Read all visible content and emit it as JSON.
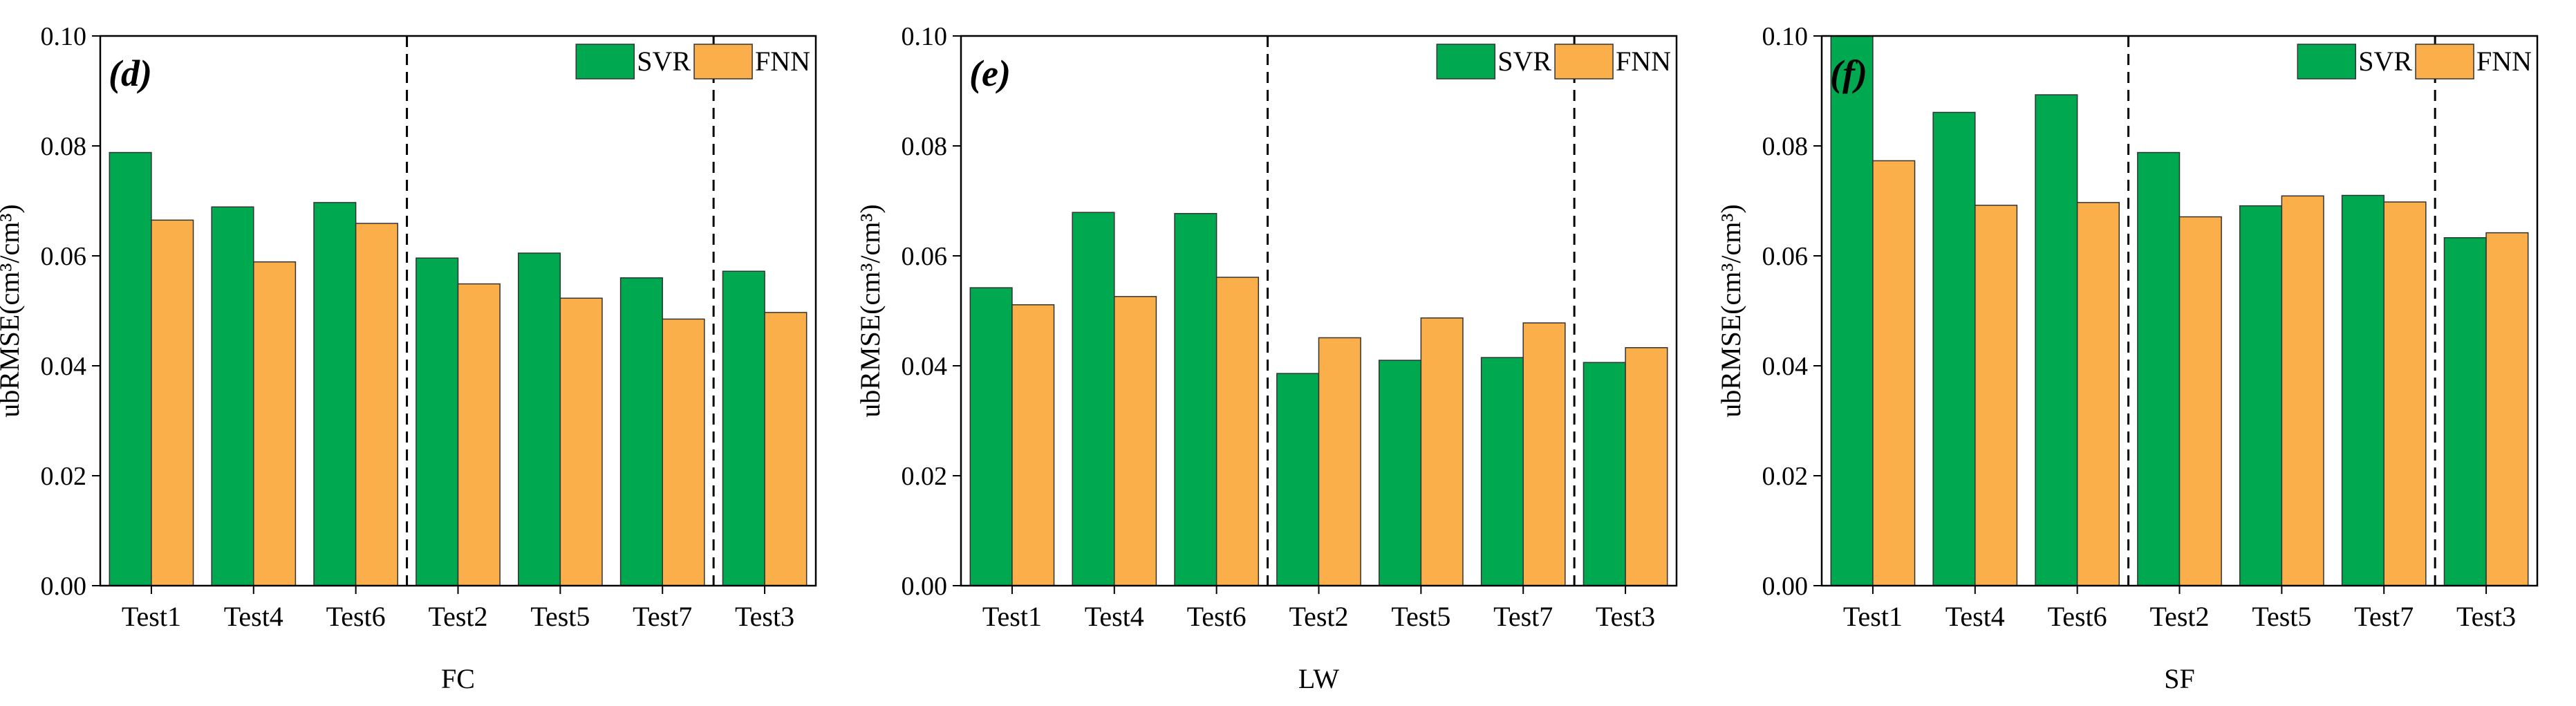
{
  "chart_data": [
    {
      "type": "bar",
      "panel_label": "d",
      "categories": [
        "Test1",
        "Test4",
        "Test6",
        "Test2",
        "Test5",
        "Test7",
        "Test3"
      ],
      "series": [
        {
          "name": "SVR",
          "color": "#00A94F",
          "values": [
            0.0788,
            0.0689,
            0.0697,
            0.0596,
            0.0605,
            0.056,
            0.0572
          ]
        },
        {
          "name": "FNN",
          "color": "#FBAF4B",
          "values": [
            0.0665,
            0.0589,
            0.0659,
            0.0549,
            0.0523,
            0.0485,
            0.0497
          ]
        }
      ],
      "xlabel": "FC",
      "ylabel": "ubRMSE(cm³/cm³)",
      "ylim": [
        0,
        0.1
      ],
      "yticks": [
        "0.00",
        "0.02",
        "0.04",
        "0.06",
        "0.08",
        "0.10"
      ],
      "group_dividers_after": [
        2,
        5
      ],
      "legend": "top-right"
    },
    {
      "type": "bar",
      "panel_label": "e",
      "categories": [
        "Test1",
        "Test4",
        "Test6",
        "Test2",
        "Test5",
        "Test7",
        "Test3"
      ],
      "series": [
        {
          "name": "SVR",
          "color": "#00A94F",
          "values": [
            0.0542,
            0.0679,
            0.0677,
            0.0386,
            0.041,
            0.0415,
            0.0406
          ]
        },
        {
          "name": "FNN",
          "color": "#FBAF4B",
          "values": [
            0.0511,
            0.0526,
            0.0561,
            0.0451,
            0.0487,
            0.0478,
            0.0433
          ]
        }
      ],
      "xlabel": "LW",
      "ylabel": "ubRMSE(cm³/cm³)",
      "ylim": [
        0,
        0.1
      ],
      "yticks": [
        "0.00",
        "0.02",
        "0.04",
        "0.06",
        "0.08",
        "0.10"
      ],
      "group_dividers_after": [
        2,
        5
      ],
      "legend": "top-right"
    },
    {
      "type": "bar",
      "panel_label": "f",
      "categories": [
        "Test1",
        "Test4",
        "Test6",
        "Test2",
        "Test5",
        "Test7",
        "Test3"
      ],
      "series": [
        {
          "name": "SVR",
          "color": "#00A94F",
          "values": [
            0.1,
            0.0861,
            0.0893,
            0.0788,
            0.0691,
            0.071,
            0.0633
          ]
        },
        {
          "name": "FNN",
          "color": "#FBAF4B",
          "values": [
            0.0773,
            0.0692,
            0.0697,
            0.0671,
            0.0709,
            0.0698,
            0.0642
          ]
        }
      ],
      "xlabel": "SF",
      "ylabel": "ubRMSE(cm³/cm³)",
      "ylim": [
        0,
        0.1
      ],
      "yticks": [
        "0.00",
        "0.02",
        "0.04",
        "0.06",
        "0.08",
        "0.10"
      ],
      "group_dividers_after": [
        2,
        5
      ],
      "legend": "top-right"
    }
  ]
}
